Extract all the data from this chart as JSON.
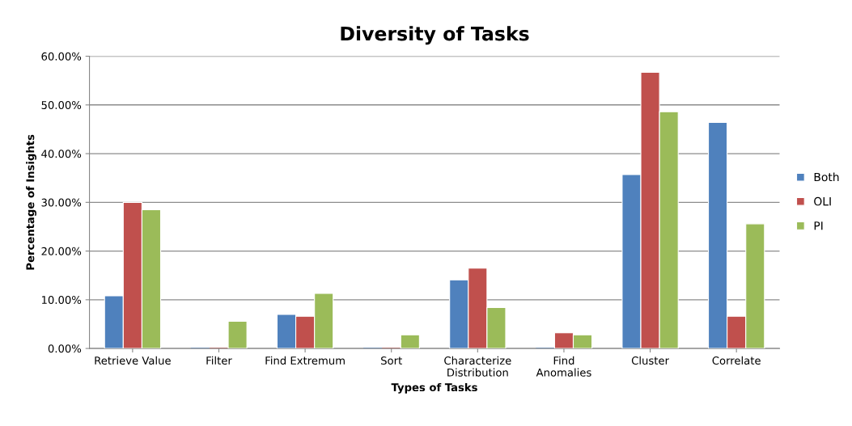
{
  "chart_data": {
    "type": "bar",
    "title": "Diversity of Tasks",
    "xlabel": "Types of Tasks",
    "ylabel": "Percentage of Insights",
    "categories": [
      "Retrieve Value",
      "Filter",
      "Find Extremum",
      "Sort",
      "Characterize\nDistribution",
      "Find\nAnomalies",
      "Cluster",
      "Correlate"
    ],
    "series": [
      {
        "name": "Both",
        "color": "#4f81bd",
        "values": [
          10.8,
          0,
          7.0,
          0,
          14.1,
          0,
          35.7,
          46.4
        ]
      },
      {
        "name": "OLI",
        "color": "#c0504d",
        "values": [
          30.0,
          0,
          6.6,
          0,
          16.5,
          3.2,
          56.7,
          6.6
        ]
      },
      {
        "name": "PI",
        "color": "#9bbb59",
        "values": [
          28.5,
          5.6,
          11.3,
          2.8,
          8.4,
          2.8,
          48.6,
          25.6
        ]
      }
    ],
    "ylim": [
      0,
      60
    ],
    "yticks": [
      {
        "value": 0,
        "label": "0.00%"
      },
      {
        "value": 10,
        "label": "10.00%"
      },
      {
        "value": 20,
        "label": "20.00%"
      },
      {
        "value": 30,
        "label": "30.00%"
      },
      {
        "value": 40,
        "label": "40.00%"
      },
      {
        "value": 50,
        "label": "50.00%"
      },
      {
        "value": 60,
        "label": "60.00%"
      }
    ],
    "grid": "y",
    "legend": "right"
  }
}
